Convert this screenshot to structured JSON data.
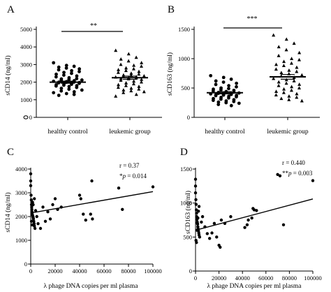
{
  "chart_data": [
    {
      "panel": "A",
      "type": "scatter",
      "ylabel": "sCD14 (ng/ml)",
      "yticks": [
        "0",
        "1000",
        "2000",
        "3000",
        "4000",
        "5000"
      ],
      "ylim": [
        0,
        5000
      ],
      "categories": [
        "healthy control",
        "leukemic group"
      ],
      "significance": "**",
      "series": [
        {
          "values": [
            3100,
            2950,
            2900,
            2850,
            2800,
            2750,
            2700,
            2650,
            2600,
            2550,
            2500,
            2450,
            2400,
            2350,
            2300,
            2250,
            2200,
            2180,
            2150,
            2120,
            2100,
            2080,
            2050,
            2030,
            2010,
            2000,
            1990,
            1980,
            1960,
            1950,
            1930,
            1900,
            1880,
            1850,
            1830,
            1800,
            1780,
            1750,
            1700,
            1650,
            1600,
            1550,
            1500,
            1450,
            1400,
            1350,
            1300,
            1250
          ],
          "mean": 2000,
          "sem": 60
        },
        {
          "values": [
            3800,
            3600,
            3400,
            3300,
            3200,
            3100,
            3000,
            2950,
            2900,
            2800,
            2750,
            2700,
            2650,
            2600,
            2550,
            2500,
            2450,
            2400,
            2380,
            2350,
            2320,
            2300,
            2280,
            2250,
            2230,
            2200,
            2180,
            2150,
            2100,
            2050,
            2000,
            1950,
            1900,
            1850,
            1800,
            1750,
            1700,
            1650,
            1600,
            1550,
            1500,
            1450,
            1400,
            1300,
            1200
          ],
          "mean": 2250,
          "sem": 90
        }
      ]
    },
    {
      "panel": "B",
      "type": "scatter",
      "ylabel": "sCD163 (ng/ml)",
      "yticks": [
        "0",
        "500",
        "1000",
        "1500"
      ],
      "ylim": [
        0,
        1500
      ],
      "categories": [
        "healthy control",
        "leukemic group"
      ],
      "significance": "***",
      "series": [
        {
          "values": [
            710,
            680,
            650,
            620,
            600,
            580,
            560,
            540,
            520,
            500,
            490,
            480,
            470,
            460,
            450,
            440,
            430,
            425,
            420,
            415,
            410,
            405,
            400,
            395,
            390,
            385,
            380,
            375,
            370,
            360,
            350,
            340,
            330,
            320,
            310,
            300,
            290,
            280,
            270,
            260,
            250,
            240,
            220,
            200
          ],
          "mean": 420,
          "sem": 20
        },
        {
          "values": [
            1400,
            1330,
            1260,
            1200,
            1150,
            1100,
            1050,
            1000,
            980,
            950,
            920,
            900,
            880,
            850,
            820,
            800,
            780,
            760,
            740,
            720,
            700,
            680,
            660,
            640,
            620,
            600,
            580,
            560,
            540,
            520,
            500,
            480,
            460,
            440,
            420,
            400,
            380,
            360,
            340,
            320,
            300,
            280
          ],
          "mean": 690,
          "sem": 40
        }
      ]
    },
    {
      "panel": "C",
      "type": "scatter",
      "ylabel": "sCD14 (ng/ml)",
      "xlabel": "λ phage DNA copies per ml plasma",
      "xticks": [
        "0",
        "20000",
        "40000",
        "60000",
        "80000",
        "100000"
      ],
      "yticks": [
        "0",
        "1000",
        "2000",
        "3000",
        "4000"
      ],
      "ylim": [
        0,
        4000
      ],
      "xlim": [
        0,
        100000
      ],
      "stat_r": "r = 0.37",
      "stat_p_prefix": "*",
      "stat_p_label": "p",
      "stat_p_value": " = 0.014",
      "fit": {
        "x": [
          0,
          100000
        ],
        "y": [
          2150,
          3050
        ]
      },
      "points": [
        [
          0,
          3800
        ],
        [
          0,
          3500
        ],
        [
          0,
          3300
        ],
        [
          300,
          2900
        ],
        [
          500,
          2700
        ],
        [
          600,
          2500
        ],
        [
          800,
          2400
        ],
        [
          900,
          2300
        ],
        [
          1000,
          2200
        ],
        [
          1200,
          2100
        ],
        [
          1500,
          2050
        ],
        [
          1800,
          2000
        ],
        [
          2000,
          1950
        ],
        [
          2200,
          1900
        ],
        [
          2500,
          1800
        ],
        [
          2800,
          1700
        ],
        [
          3000,
          1600
        ],
        [
          3500,
          1500
        ],
        [
          600,
          1800
        ],
        [
          1000,
          1650
        ],
        [
          1500,
          2600
        ],
        [
          2000,
          2500
        ],
        [
          3000,
          2750
        ],
        [
          4000,
          2250
        ],
        [
          5000,
          2000
        ],
        [
          6000,
          1700
        ],
        [
          8000,
          1500
        ],
        [
          10000,
          2400
        ],
        [
          12000,
          1800
        ],
        [
          14000,
          2200
        ],
        [
          16000,
          1900
        ],
        [
          18000,
          2500
        ],
        [
          20000,
          2750
        ],
        [
          22000,
          2300
        ],
        [
          25000,
          2400
        ],
        [
          40000,
          2900
        ],
        [
          41000,
          2750
        ],
        [
          43000,
          2100
        ],
        [
          45000,
          1850
        ],
        [
          49000,
          2100
        ],
        [
          50000,
          3500
        ],
        [
          50500,
          1900
        ],
        [
          72000,
          3200
        ],
        [
          75000,
          2300
        ],
        [
          100000,
          3250
        ]
      ]
    },
    {
      "panel": "D",
      "type": "scatter",
      "ylabel": "sCD163 (ng/ml)",
      "xlabel": "λ phage DNA copies per ml plasma",
      "xticks": [
        "0",
        "20000",
        "40000",
        "60000",
        "80000",
        "100000"
      ],
      "yticks": [
        "0",
        "500",
        "1000",
        "1500"
      ],
      "ylim": [
        0,
        1500
      ],
      "xlim": [
        0,
        100000
      ],
      "stat_r": "r = 0.440",
      "stat_p_prefix": "**",
      "stat_p_label": "p",
      "stat_p_value": " = 0.003",
      "fit": {
        "x": [
          0,
          100000
        ],
        "y": [
          600,
          1060
        ]
      },
      "points": [
        [
          0,
          1350
        ],
        [
          0,
          1250
        ],
        [
          0,
          1150
        ],
        [
          300,
          1050
        ],
        [
          500,
          980
        ],
        [
          700,
          900
        ],
        [
          900,
          850
        ],
        [
          1000,
          800
        ],
        [
          1200,
          760
        ],
        [
          1500,
          720
        ],
        [
          1800,
          690
        ],
        [
          2000,
          650
        ],
        [
          2200,
          620
        ],
        [
          2500,
          590
        ],
        [
          2800,
          560
        ],
        [
          3000,
          530
        ],
        [
          3500,
          500
        ],
        [
          400,
          450
        ],
        [
          800,
          420
        ],
        [
          1200,
          600
        ],
        [
          1600,
          700
        ],
        [
          2000,
          780
        ],
        [
          2500,
          880
        ],
        [
          3000,
          950
        ],
        [
          5000,
          720
        ],
        [
          6000,
          800
        ],
        [
          8000,
          650
        ],
        [
          10000,
          550
        ],
        [
          12000,
          480
        ],
        [
          14000,
          560
        ],
        [
          16000,
          700
        ],
        [
          18000,
          500
        ],
        [
          20000,
          380
        ],
        [
          21000,
          350
        ],
        [
          22000,
          750
        ],
        [
          25000,
          700
        ],
        [
          30000,
          800
        ],
        [
          42000,
          640
        ],
        [
          44000,
          680
        ],
        [
          45000,
          750
        ],
        [
          48000,
          780
        ],
        [
          49000,
          920
        ],
        [
          50000,
          900
        ],
        [
          52000,
          890
        ],
        [
          70000,
          1420
        ],
        [
          72000,
          1400
        ],
        [
          100000,
          1330
        ],
        [
          75000,
          680
        ]
      ]
    }
  ],
  "panel_letters": [
    "A",
    "B",
    "C",
    "D"
  ]
}
